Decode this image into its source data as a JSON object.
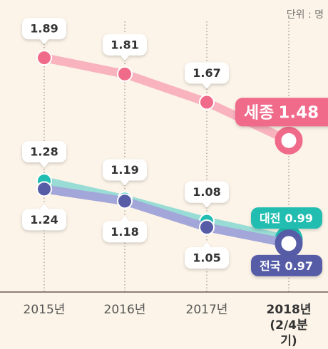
{
  "chart_data": {
    "type": "line",
    "unit_label": "단위 : 명",
    "categories": [
      "2015년",
      "2016년",
      "2017년",
      "2018년 (2/4분기)"
    ],
    "series": [
      {
        "name": "세종",
        "color": "#f06b8a",
        "line_color": "#f8b3bf",
        "values": [
          1.89,
          1.81,
          1.67,
          1.48
        ]
      },
      {
        "name": "대전",
        "color": "#22bdb1",
        "line_color": "#98dcd5",
        "values": [
          1.28,
          1.19,
          1.08,
          0.99
        ]
      },
      {
        "name": "전국",
        "color": "#565ca6",
        "line_color": "#a3a6d8",
        "values": [
          1.24,
          1.18,
          1.05,
          0.97
        ]
      }
    ],
    "ylim": [
      0.8,
      2.0
    ]
  }
}
